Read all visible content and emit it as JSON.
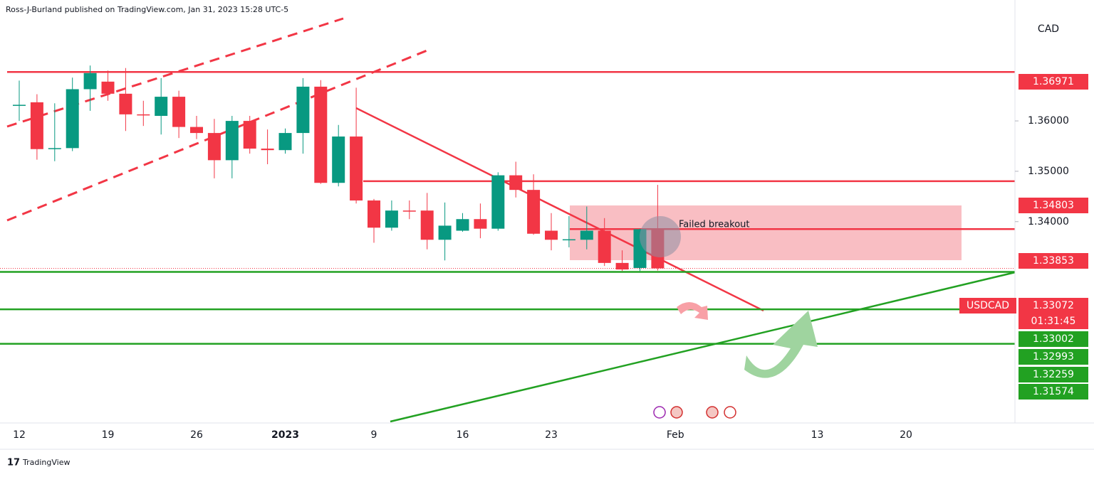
{
  "chart_data": {
    "type": "candlestick",
    "publisher": "Ross-J-Burland published on TradingView.com, Jan 31, 2023 15:28 UTC-5",
    "currency": "CAD",
    "symbol": "USDCAD",
    "countdown": "01:31:45",
    "annotation": "Failed breakout",
    "brand": "TradingView",
    "categories": [
      "12",
      null,
      null,
      null,
      null,
      "19",
      null,
      null,
      null,
      null,
      "26",
      null,
      null,
      null,
      null,
      "2023",
      null,
      null,
      null,
      null,
      "9",
      null,
      null,
      null,
      null,
      "16",
      null,
      null,
      null,
      null,
      "23",
      null,
      null,
      null,
      null,
      null,
      null,
      "Feb",
      null,
      null,
      null,
      null,
      null,
      null,
      null,
      "13",
      null,
      null,
      null,
      null,
      "20",
      null,
      null,
      null,
      null,
      null,
      null
    ],
    "open": [
      1.363,
      1.3637,
      1.3545,
      1.3546,
      1.3663,
      1.3678,
      1.3654,
      1.3613,
      1.361,
      1.3648,
      1.3588,
      1.3576,
      1.3522,
      1.36,
      1.3545,
      1.3542,
      1.3576,
      1.3668,
      1.3477,
      1.3569,
      1.3442,
      1.3388,
      1.3422,
      1.3422,
      1.3364,
      1.3382,
      1.3405,
      1.3386,
      1.3492,
      1.3463,
      1.3382,
      1.3364,
      1.3364,
      1.3382,
      1.3318,
      1.3308,
      1.3385,
      null,
      null,
      null,
      null,
      null,
      null,
      null,
      null,
      null,
      null,
      null,
      null,
      null,
      null,
      null,
      null,
      null,
      null,
      null,
      null
    ],
    "high": [
      1.368,
      1.3653,
      1.3635,
      1.3686,
      1.371,
      1.37,
      1.3705,
      1.364,
      1.3685,
      1.366,
      1.361,
      1.3604,
      1.361,
      1.361,
      1.3583,
      1.3585,
      1.3685,
      1.3681,
      1.3592,
      1.3666,
      1.3445,
      1.3442,
      1.3442,
      1.3457,
      1.3438,
      1.3417,
      1.3436,
      1.3498,
      1.3519,
      1.3494,
      1.3417,
      1.3411,
      1.343,
      1.3407,
      1.3343,
      1.3386,
      1.3473,
      null,
      null,
      null,
      null,
      null,
      null,
      null,
      null,
      null,
      null,
      null,
      null,
      null,
      null,
      null,
      null,
      null,
      null,
      null,
      null
    ],
    "low": [
      1.36,
      1.3523,
      1.352,
      1.354,
      1.362,
      1.364,
      1.358,
      1.359,
      1.3573,
      1.3566,
      1.3564,
      1.3486,
      1.3486,
      1.3535,
      1.3514,
      1.3535,
      1.3535,
      1.3475,
      1.347,
      1.3436,
      1.3358,
      1.3382,
      1.3405,
      1.3345,
      1.3323,
      1.338,
      1.3367,
      1.3382,
      1.3448,
      1.3374,
      1.3343,
      1.3349,
      1.3345,
      1.3312,
      1.3302,
      1.3302,
      1.3303,
      null,
      null,
      null,
      null,
      null,
      null,
      null,
      null,
      null,
      null,
      null,
      null,
      null,
      null,
      null,
      null,
      null,
      null,
      null,
      null
    ],
    "close": [
      1.3632,
      1.3544,
      1.3546,
      1.3663,
      1.3695,
      1.3654,
      1.3613,
      1.3612,
      1.3648,
      1.3588,
      1.3576,
      1.3522,
      1.36,
      1.3545,
      1.3542,
      1.3576,
      1.3668,
      1.3477,
      1.3569,
      1.3442,
      1.3388,
      1.3422,
      1.3421,
      1.3364,
      1.3392,
      1.3405,
      1.3386,
      1.3492,
      1.3463,
      1.3376,
      1.3364,
      1.3365,
      1.3382,
      1.3318,
      1.3305,
      1.3385,
      1.33072,
      null,
      null,
      null,
      null,
      null,
      null,
      null,
      null,
      null,
      null,
      null,
      null,
      null,
      null,
      null,
      null,
      null,
      null,
      null,
      null
    ],
    "up_color": "#089981",
    "down_color": "#f23645",
    "ylim": [
      1.30002,
      1.38401
    ],
    "yticks": [
      {
        "value": 1.36,
        "label": "1.36000"
      },
      {
        "value": 1.35,
        "label": "1.35000"
      },
      {
        "value": 1.34,
        "label": "1.34000"
      }
    ],
    "levels": [
      {
        "value": 1.36971,
        "color": "#f23645"
      },
      {
        "value": 1.34803,
        "color": "#f23645"
      },
      {
        "value": 1.33853,
        "color": "#f23645"
      },
      {
        "value": 1.33002,
        "color": "#22a122"
      },
      {
        "value": 1.32259,
        "color": "#22a122"
      },
      {
        "value": 1.31574,
        "color": "#22a122"
      }
    ],
    "trendline_value": 1.32993,
    "trendline_color": "#22a122"
  }
}
